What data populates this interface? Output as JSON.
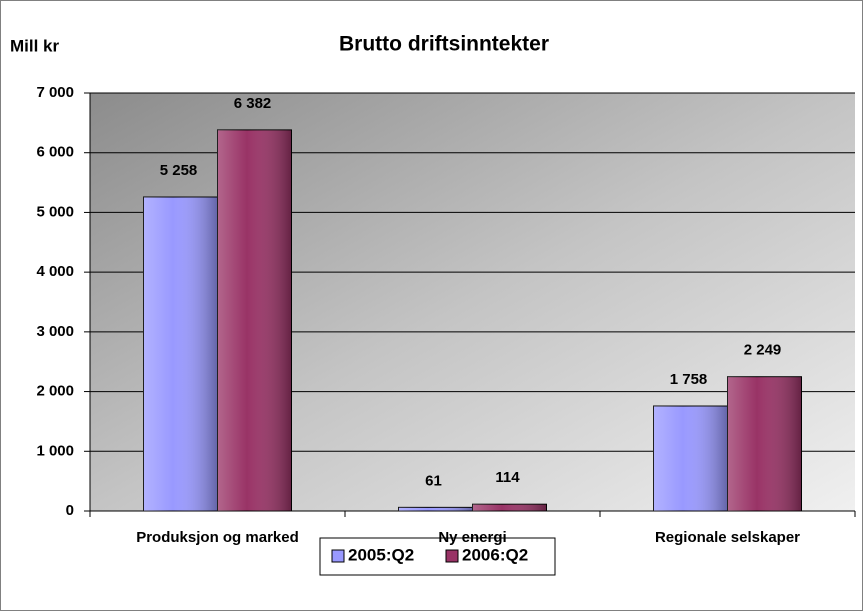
{
  "chart_data": {
    "type": "bar",
    "title": "Brutto driftsinntekter",
    "y_label": "Mill kr",
    "categories": [
      "Produksjon og marked",
      "Ny energi",
      "Regionale selskaper"
    ],
    "series": [
      {
        "name": "2005:Q2",
        "color": "#9999ff",
        "values": [
          5258,
          61,
          1758
        ],
        "value_labels": [
          "5 258",
          "61",
          "1 758"
        ]
      },
      {
        "name": "2006:Q2",
        "color": "#993366",
        "values": [
          6382,
          114,
          2249
        ],
        "value_labels": [
          "6 382",
          "114",
          "2 249"
        ]
      }
    ],
    "ylim": [
      0,
      7000
    ],
    "yticks": [
      {
        "value": 0,
        "label": "0"
      },
      {
        "value": 1000,
        "label": "1 000"
      },
      {
        "value": 2000,
        "label": "2 000"
      },
      {
        "value": 3000,
        "label": "3 000"
      },
      {
        "value": 4000,
        "label": "4 000"
      },
      {
        "value": 5000,
        "label": "5 000"
      },
      {
        "value": 6000,
        "label": "6 000"
      },
      {
        "value": 7000,
        "label": "7 000"
      }
    ],
    "grid": true,
    "legend": "bottom"
  }
}
